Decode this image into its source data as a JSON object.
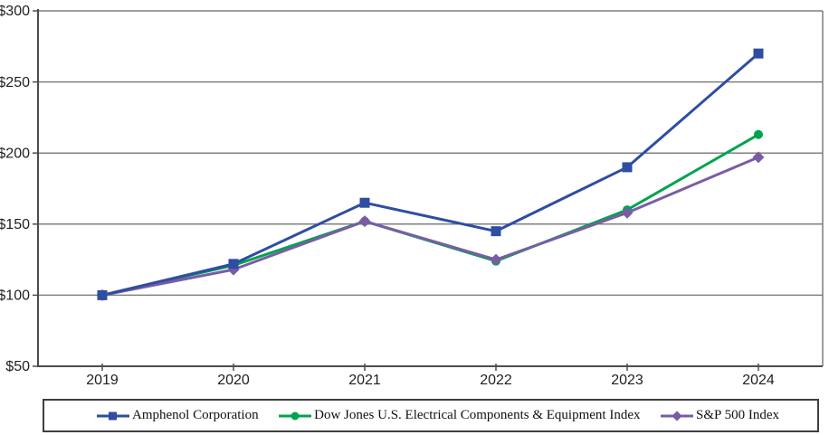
{
  "figure": {
    "background": "#ffffff",
    "text_color": "#1f1f1f",
    "axis_color": "#4d4d4d",
    "grid_color": "#7f7f7f",
    "legend_border_color": "#3f3f3f"
  },
  "chart_data": {
    "type": "line",
    "title": "",
    "xlabel": "",
    "ylabel": "",
    "categories": [
      "2019",
      "2020",
      "2021",
      "2022",
      "2023",
      "2024"
    ],
    "y_axis": {
      "ticks": [
        "$300",
        "$250",
        "$200",
        "$150",
        "$100",
        "$50"
      ],
      "tick_values": [
        300,
        250,
        200,
        150,
        100,
        50
      ],
      "min": 50,
      "max": 300
    },
    "grid": true,
    "legend_position": "bottom",
    "series": [
      {
        "name": "Amphenol Corporation",
        "color": "#2e4da3",
        "marker": "square",
        "z": 3,
        "values": [
          100,
          122,
          165,
          145,
          190,
          270
        ]
      },
      {
        "name": "Dow Jones U.S. Electrical Components & Equipment Index",
        "color": "#00a44f",
        "marker": "circle",
        "z": 1,
        "values": [
          100,
          121,
          152,
          124,
          160,
          213
        ]
      },
      {
        "name": "S&P 500 Index",
        "color": "#7a5ca6",
        "marker": "diamond",
        "z": 2,
        "values": [
          100,
          118,
          152,
          125,
          158,
          197
        ]
      }
    ]
  }
}
